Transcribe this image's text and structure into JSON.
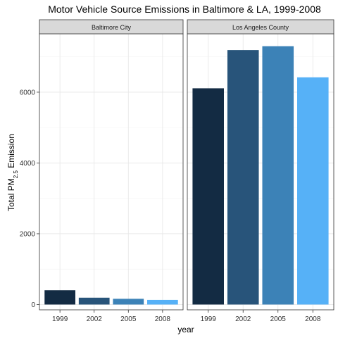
{
  "chart_data": {
    "type": "bar",
    "title": "Motor Vehicle Source Emissions in Baltimore & LA, 1999-2008",
    "xlabel": "year",
    "ylabel": {
      "prefix": "Total PM",
      "subscript": "2.5",
      "suffix": " Emission"
    },
    "categories": [
      "1999",
      "2002",
      "2005",
      "2008"
    ],
    "colors": [
      "#132B43",
      "#28547A",
      "#3C82B7",
      "#56B1F7"
    ],
    "ylim": [
      -150,
      7650
    ],
    "yticks": [
      0,
      2000,
      4000,
      6000
    ],
    "ytick_labels": [
      "0",
      "2000",
      "4000",
      "6000"
    ],
    "grid": true,
    "panels": [
      {
        "label": "Baltimore City",
        "values": [
          403,
          193,
          162,
          130
        ]
      },
      {
        "label": "Los Angeles County",
        "values": [
          6110,
          7190,
          7300,
          6420
        ]
      }
    ]
  }
}
